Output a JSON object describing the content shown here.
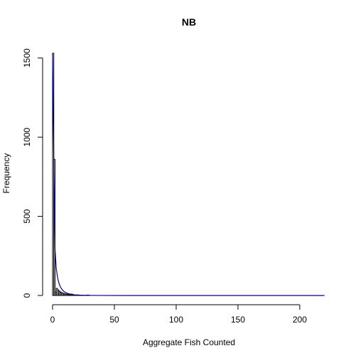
{
  "chart_data": {
    "type": "bar",
    "title": "NB",
    "xlabel": "Aggregate Fish Counted",
    "ylabel": "Frequency",
    "xlim": [
      0,
      220
    ],
    "ylim": [
      0,
      1550
    ],
    "x_ticks": [
      0,
      50,
      100,
      150,
      200
    ],
    "y_ticks": [
      0,
      500,
      1000,
      1500
    ],
    "bar_width": 1,
    "histogram": {
      "bins": [
        0,
        1,
        2,
        3,
        4,
        5,
        6,
        7,
        8,
        9,
        10,
        11,
        12,
        13,
        14,
        15,
        16,
        17,
        18,
        19,
        20,
        21,
        22,
        23,
        24,
        25,
        26,
        27,
        28,
        29
      ],
      "counts": [
        1530,
        860,
        20,
        45,
        35,
        28,
        22,
        18,
        14,
        12,
        10,
        8,
        7,
        6,
        5,
        9,
        6,
        4,
        3,
        2,
        4,
        2,
        1,
        1,
        1,
        1,
        1,
        1,
        3,
        1
      ]
    },
    "fitted_curve": {
      "x": [
        0,
        1,
        2,
        3,
        4,
        5,
        6,
        7,
        8,
        9,
        10,
        12,
        14,
        16,
        18,
        20,
        25,
        30,
        40,
        60,
        100,
        150,
        220
      ],
      "y": [
        1530,
        840,
        290,
        170,
        115,
        82,
        60,
        45,
        35,
        27,
        21,
        14,
        9,
        6,
        4,
        3,
        1.5,
        0.8,
        0.3,
        0,
        0,
        0,
        0
      ],
      "color": "#00008B"
    },
    "grid": false,
    "legend": "none"
  }
}
